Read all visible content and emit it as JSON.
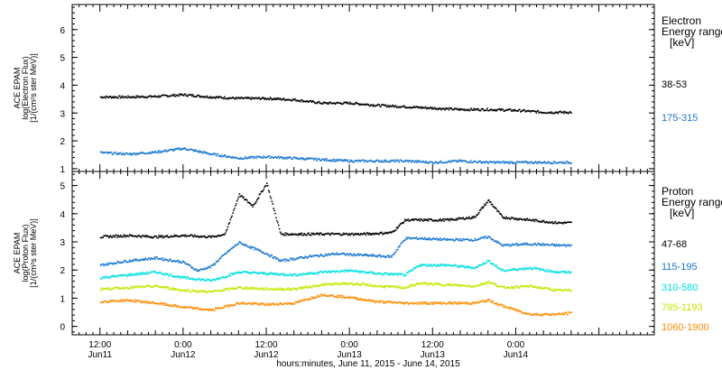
{
  "chart_data": [
    {
      "type": "scatter",
      "ylabel_lines": [
        "ACE EPAM",
        "log(Electron Flux)",
        "[1/(cm²s ster MeV)]"
      ],
      "ylim": [
        0.9,
        6.9
      ],
      "yticks": [
        1,
        2,
        3,
        4,
        5,
        6
      ],
      "legend_title": [
        "Electron",
        "Energy ranges",
        "[keV]"
      ],
      "series": [
        {
          "name": "38-53",
          "color": "#000000",
          "x": [
            0,
            4,
            8,
            12,
            16,
            20,
            24,
            28,
            32,
            36,
            40,
            44,
            48,
            52,
            56,
            60,
            64,
            68
          ],
          "y": [
            3.6,
            3.6,
            3.62,
            3.68,
            3.6,
            3.55,
            3.55,
            3.5,
            3.38,
            3.38,
            3.3,
            3.25,
            3.2,
            3.15,
            3.15,
            3.12,
            3.05,
            3.05
          ]
        },
        {
          "name": "175-315",
          "color": "#1a78d2",
          "x": [
            0,
            4,
            8,
            12,
            16,
            20,
            24,
            28,
            32,
            36,
            40,
            44,
            48,
            52,
            56,
            60,
            64,
            68
          ],
          "y": [
            1.6,
            1.55,
            1.62,
            1.75,
            1.55,
            1.4,
            1.45,
            1.4,
            1.35,
            1.3,
            1.3,
            1.3,
            1.25,
            1.3,
            1.25,
            1.25,
            1.25,
            1.25
          ]
        }
      ]
    },
    {
      "type": "scatter",
      "ylabel_lines": [
        "ACE EPAM",
        "log(Proton Flux)",
        "[1/(cm²s ster MeV)]"
      ],
      "ylim": [
        -0.3,
        5.5
      ],
      "yticks": [
        0,
        1,
        2,
        3,
        4,
        5
      ],
      "legend_title": [
        "Proton",
        "Energy ranges",
        "[keV]"
      ],
      "xlim": [
        -4,
        80
      ],
      "xticks": [
        {
          "x": 0,
          "time": "12:00",
          "date": "Jun11"
        },
        {
          "x": 12,
          "time": "0:00",
          "date": "Jun12"
        },
        {
          "x": 24,
          "time": "12:00",
          "date": "Jun12"
        },
        {
          "x": 36,
          "time": "0:00",
          "date": "Jun13"
        },
        {
          "x": 48,
          "time": "12:00",
          "date": "Jun13"
        },
        {
          "x": 60,
          "time": "0:00",
          "date": "Jun14"
        }
      ],
      "xlabel": "hours:minutes, June 11, 2015 - June 14, 2015",
      "series": [
        {
          "name": "47-68",
          "color": "#000000",
          "x": [
            0,
            4,
            8,
            12,
            16,
            18,
            20,
            22,
            24,
            26,
            30,
            34,
            38,
            42,
            44,
            46,
            50,
            54,
            56,
            58,
            62,
            66,
            68
          ],
          "y": [
            3.2,
            3.25,
            3.2,
            3.25,
            3.2,
            3.3,
            4.7,
            4.3,
            5.1,
            3.3,
            3.3,
            3.3,
            3.3,
            3.35,
            3.8,
            3.8,
            3.8,
            3.9,
            4.5,
            3.9,
            3.8,
            3.7,
            3.7
          ]
        },
        {
          "name": "115-195",
          "color": "#1a78d2",
          "x": [
            0,
            4,
            8,
            12,
            14,
            16,
            18,
            20,
            22,
            24,
            26,
            30,
            34,
            38,
            42,
            44,
            46,
            50,
            54,
            56,
            58,
            62,
            66,
            68
          ],
          "y": [
            2.2,
            2.35,
            2.45,
            2.3,
            2.0,
            2.15,
            2.6,
            3.0,
            2.8,
            2.6,
            2.35,
            2.5,
            2.6,
            2.55,
            2.5,
            3.15,
            3.15,
            3.1,
            3.1,
            3.2,
            2.9,
            2.95,
            2.9,
            2.9
          ]
        },
        {
          "name": "310-580",
          "color": "#00e0e0",
          "x": [
            0,
            4,
            8,
            12,
            16,
            20,
            24,
            28,
            32,
            36,
            40,
            44,
            46,
            50,
            54,
            56,
            58,
            62,
            66,
            68
          ],
          "y": [
            1.75,
            1.85,
            1.95,
            1.75,
            1.65,
            1.95,
            1.9,
            1.85,
            1.95,
            2.0,
            1.9,
            1.85,
            2.2,
            2.2,
            2.1,
            2.35,
            2.0,
            2.1,
            1.95,
            1.95
          ]
        },
        {
          "name": "795-1193",
          "color": "#c8e600",
          "x": [
            0,
            4,
            8,
            12,
            16,
            20,
            24,
            28,
            32,
            36,
            40,
            44,
            46,
            50,
            54,
            56,
            58,
            62,
            66,
            68
          ],
          "y": [
            1.35,
            1.4,
            1.45,
            1.3,
            1.25,
            1.4,
            1.35,
            1.35,
            1.5,
            1.55,
            1.45,
            1.4,
            1.55,
            1.5,
            1.45,
            1.6,
            1.4,
            1.45,
            1.3,
            1.3
          ]
        },
        {
          "name": "1060-1900",
          "color": "#ff8c00",
          "x": [
            0,
            4,
            8,
            12,
            16,
            20,
            24,
            28,
            32,
            36,
            40,
            44,
            46,
            50,
            54,
            56,
            58,
            60,
            62,
            66,
            68
          ],
          "y": [
            0.9,
            0.95,
            0.85,
            0.7,
            0.6,
            0.85,
            0.8,
            0.85,
            1.15,
            1.05,
            0.9,
            0.85,
            0.85,
            0.85,
            0.85,
            0.95,
            0.75,
            0.6,
            0.45,
            0.45,
            0.5
          ]
        }
      ]
    }
  ]
}
